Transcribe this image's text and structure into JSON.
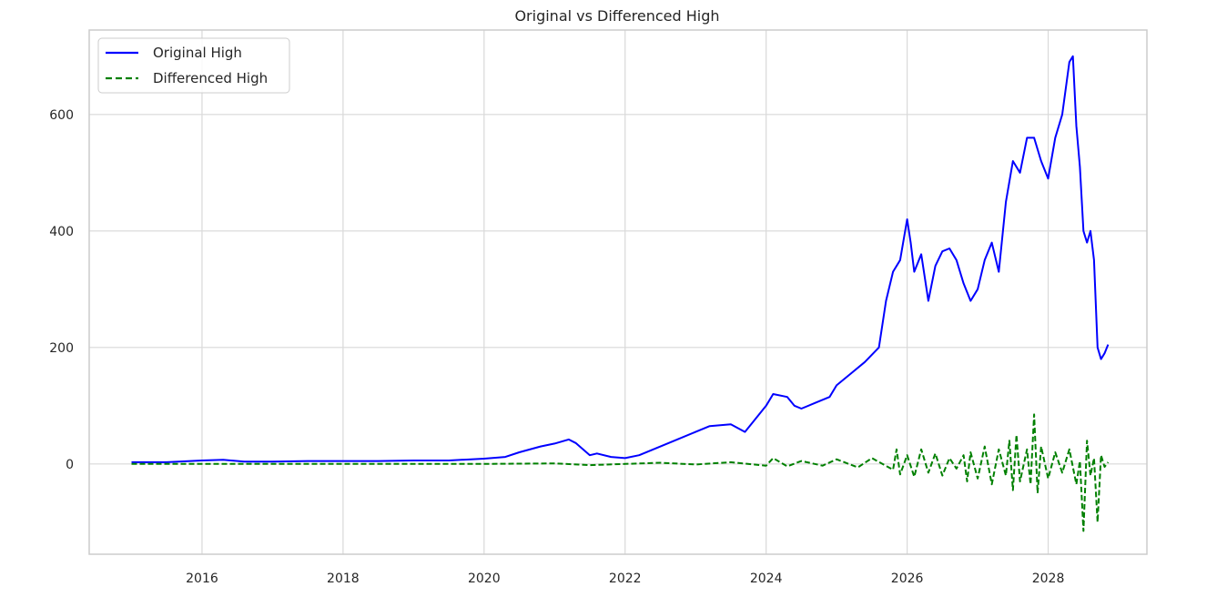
{
  "chart_data": {
    "type": "line",
    "title": "Original vs Differenced High",
    "xlabel": "",
    "ylabel": "",
    "x_ticks": [
      "2016",
      "2018",
      "2020",
      "2022",
      "2024",
      "2026",
      "2028"
    ],
    "y_ticks": [
      "0",
      "200",
      "400",
      "600"
    ],
    "xlim": [
      2014.4,
      2029.4
    ],
    "ylim": [
      -155,
      745
    ],
    "grid": true,
    "legend_position": "top-left",
    "series": [
      {
        "name": "Original High",
        "color": "#0000ff",
        "style": "solid",
        "x": [
          2015.0,
          2015.5,
          2016.0,
          2016.3,
          2016.6,
          2017.0,
          2017.5,
          2018.0,
          2018.5,
          2019.0,
          2019.5,
          2020.0,
          2020.3,
          2020.5,
          2020.8,
          2021.0,
          2021.2,
          2021.3,
          2021.5,
          2021.6,
          2021.8,
          2022.0,
          2022.2,
          2022.4,
          2022.7,
          2023.0,
          2023.2,
          2023.5,
          2023.7,
          2023.8,
          2024.0,
          2024.1,
          2024.3,
          2024.4,
          2024.5,
          2024.7,
          2024.9,
          2025.0,
          2025.2,
          2025.4,
          2025.6,
          2025.7,
          2025.8,
          2025.9,
          2026.0,
          2026.05,
          2026.1,
          2026.2,
          2026.3,
          2026.4,
          2026.5,
          2026.6,
          2026.7,
          2026.8,
          2026.9,
          2027.0,
          2027.1,
          2027.2,
          2027.3,
          2027.4,
          2027.5,
          2027.6,
          2027.7,
          2027.8,
          2027.9,
          2028.0,
          2028.1,
          2028.2,
          2028.3,
          2028.35,
          2028.4,
          2028.45,
          2028.5,
          2028.55,
          2028.6,
          2028.65,
          2028.7,
          2028.75,
          2028.8,
          2028.85
        ],
        "y": [
          3,
          3,
          6,
          7,
          4,
          4,
          5,
          5,
          5,
          6,
          6,
          9,
          12,
          20,
          30,
          35,
          42,
          36,
          15,
          18,
          12,
          10,
          15,
          25,
          40,
          55,
          65,
          68,
          55,
          70,
          100,
          120,
          115,
          100,
          95,
          105,
          115,
          135,
          155,
          175,
          200,
          280,
          330,
          350,
          420,
          380,
          330,
          360,
          280,
          340,
          365,
          370,
          350,
          310,
          280,
          300,
          350,
          380,
          330,
          450,
          520,
          500,
          560,
          560,
          520,
          490,
          560,
          600,
          690,
          700,
          580,
          510,
          400,
          380,
          400,
          350,
          200,
          180,
          190,
          205
        ]
      },
      {
        "name": "Differenced High",
        "color": "#008000",
        "style": "dashed",
        "x": [
          2015.0,
          2016.0,
          2017.0,
          2018.0,
          2019.0,
          2020.0,
          2021.0,
          2021.5,
          2022.0,
          2022.5,
          2023.0,
          2023.5,
          2024.0,
          2024.1,
          2024.3,
          2024.5,
          2024.8,
          2025.0,
          2025.3,
          2025.5,
          2025.8,
          2025.85,
          2025.9,
          2026.0,
          2026.1,
          2026.2,
          2026.3,
          2026.4,
          2026.5,
          2026.6,
          2026.7,
          2026.8,
          2026.85,
          2026.9,
          2027.0,
          2027.1,
          2027.2,
          2027.3,
          2027.4,
          2027.45,
          2027.5,
          2027.55,
          2027.6,
          2027.7,
          2027.75,
          2027.8,
          2027.85,
          2027.9,
          2028.0,
          2028.1,
          2028.2,
          2028.3,
          2028.4,
          2028.45,
          2028.5,
          2028.55,
          2028.6,
          2028.65,
          2028.7,
          2028.75,
          2028.8,
          2028.85
        ],
        "y": [
          0,
          0,
          0,
          0,
          0,
          0,
          1,
          -2,
          0,
          2,
          -1,
          3,
          -3,
          10,
          -4,
          5,
          -3,
          8,
          -6,
          10,
          -10,
          25,
          -18,
          15,
          -22,
          25,
          -15,
          18,
          -20,
          10,
          -8,
          15,
          -30,
          20,
          -25,
          30,
          -35,
          25,
          -20,
          40,
          -45,
          50,
          -30,
          25,
          -35,
          85,
          -50,
          30,
          -25,
          20,
          -15,
          25,
          -35,
          5,
          -115,
          40,
          -20,
          10,
          -100,
          15,
          -5,
          3
        ]
      }
    ]
  }
}
